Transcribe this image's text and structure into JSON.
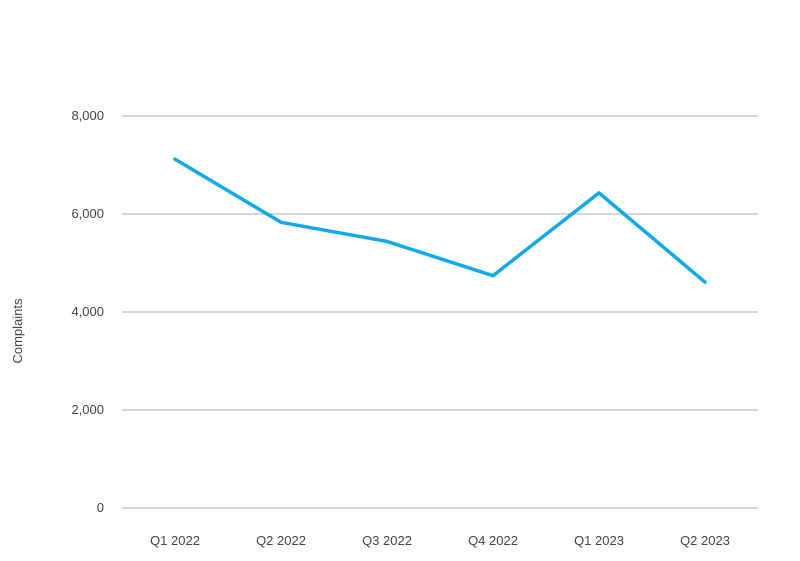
{
  "chart_data": {
    "type": "line",
    "categories": [
      "Q1 2022",
      "Q2 2022",
      "Q3 2022",
      "Q4 2022",
      "Q1 2023",
      "Q2 2023"
    ],
    "series": [
      {
        "values": [
          7120,
          5830,
          5440,
          4740,
          6430,
          4610
        ]
      }
    ],
    "ylabel": "Complaints",
    "ylim": [
      0,
      8000
    ],
    "yticks": [
      0,
      2000,
      4000,
      6000,
      8000
    ],
    "ytick_labels": [
      "0",
      "2,000",
      "4,000",
      "6,000",
      "8,000"
    ],
    "grid": true,
    "legend": "none",
    "colors": {
      "line": "#12a9e8",
      "grid": "#c8c8c8",
      "text": "#444444"
    }
  }
}
